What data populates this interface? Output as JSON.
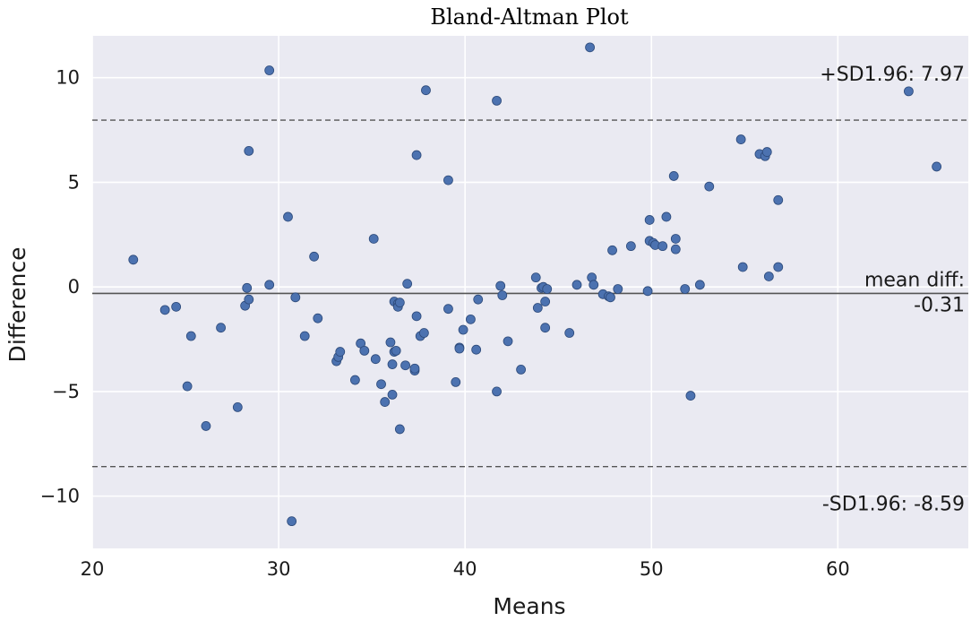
{
  "chart_data": {
    "type": "scatter",
    "title": "Bland-Altman Plot",
    "xlabel": "Means",
    "ylabel": "Difference",
    "xlim": [
      20,
      67
    ],
    "ylim": [
      -12.5,
      12
    ],
    "xticks": [
      20,
      30,
      40,
      50,
      60
    ],
    "yticks": [
      -10,
      -5,
      0,
      5,
      10
    ],
    "xtick_labels": [
      "20",
      "30",
      "40",
      "50",
      "60"
    ],
    "ytick_labels": [
      "−10",
      "−5",
      "0",
      "5",
      "10"
    ],
    "grid": true,
    "mean_diff": -0.31,
    "upper_loa": 7.97,
    "lower_loa": -8.59,
    "upper_label": "+SD1.96: 7.97",
    "mean_label_line1": "mean diff:",
    "mean_label_line2": "-0.31",
    "lower_label": "-SD1.96: -8.59",
    "colors": {
      "background": "#eaeaf2",
      "grid": "#ffffff",
      "point": "#4c72b0",
      "point_edge": "#2d4a7a",
      "mean_line": "#555555",
      "loa_line": "#555555"
    },
    "points": [
      [
        22.2,
        1.3
      ],
      [
        23.9,
        -1.1
      ],
      [
        24.5,
        -0.95
      ],
      [
        25.1,
        -4.75
      ],
      [
        25.3,
        -2.35
      ],
      [
        26.1,
        -6.65
      ],
      [
        26.9,
        -1.95
      ],
      [
        27.8,
        -5.75
      ],
      [
        28.2,
        -0.9
      ],
      [
        28.3,
        -0.05
      ],
      [
        28.4,
        6.5
      ],
      [
        28.4,
        -0.6
      ],
      [
        29.5,
        10.35
      ],
      [
        29.5,
        0.1
      ],
      [
        30.5,
        3.35
      ],
      [
        30.7,
        -11.2
      ],
      [
        30.9,
        -0.5
      ],
      [
        31.4,
        -2.35
      ],
      [
        31.9,
        1.45
      ],
      [
        32.1,
        -1.5
      ],
      [
        33.1,
        -3.55
      ],
      [
        33.2,
        -3.35
      ],
      [
        33.3,
        -3.1
      ],
      [
        34.1,
        -4.45
      ],
      [
        34.4,
        -2.7
      ],
      [
        34.6,
        -3.05
      ],
      [
        35.1,
        2.3
      ],
      [
        35.2,
        -3.45
      ],
      [
        35.5,
        -4.65
      ],
      [
        35.7,
        -5.5
      ],
      [
        36.0,
        -2.65
      ],
      [
        36.1,
        -5.15
      ],
      [
        36.1,
        -3.7
      ],
      [
        36.2,
        -3.1
      ],
      [
        36.2,
        -0.7
      ],
      [
        36.3,
        -3.05
      ],
      [
        36.4,
        -0.8
      ],
      [
        36.4,
        -0.95
      ],
      [
        36.5,
        -6.8
      ],
      [
        36.5,
        -0.75
      ],
      [
        36.8,
        -3.75
      ],
      [
        36.9,
        0.15
      ],
      [
        37.3,
        -4.0
      ],
      [
        37.3,
        -3.9
      ],
      [
        37.4,
        6.3
      ],
      [
        37.4,
        -1.4
      ],
      [
        37.6,
        -2.35
      ],
      [
        37.8,
        -2.2
      ],
      [
        37.9,
        9.4
      ],
      [
        39.1,
        5.1
      ],
      [
        39.1,
        -1.05
      ],
      [
        39.5,
        -4.55
      ],
      [
        39.7,
        -2.9
      ],
      [
        39.7,
        -2.95
      ],
      [
        39.9,
        -2.05
      ],
      [
        40.3,
        -1.55
      ],
      [
        40.6,
        -3.0
      ],
      [
        40.7,
        -0.6
      ],
      [
        41.7,
        8.9
      ],
      [
        41.7,
        -5.0
      ],
      [
        41.9,
        0.05
      ],
      [
        42.0,
        -0.4
      ],
      [
        42.3,
        -2.6
      ],
      [
        43.0,
        -3.95
      ],
      [
        43.8,
        0.45
      ],
      [
        43.9,
        -1.0
      ],
      [
        44.1,
        -0.05
      ],
      [
        44.2,
        0.0
      ],
      [
        44.3,
        -1.95
      ],
      [
        44.3,
        -0.7
      ],
      [
        44.4,
        -0.1
      ],
      [
        45.6,
        -2.2
      ],
      [
        46.0,
        0.1
      ],
      [
        46.7,
        11.45
      ],
      [
        46.8,
        0.45
      ],
      [
        46.9,
        0.1
      ],
      [
        47.4,
        -0.35
      ],
      [
        47.7,
        -0.45
      ],
      [
        47.8,
        -0.5
      ],
      [
        47.9,
        1.75
      ],
      [
        48.2,
        -0.1
      ],
      [
        48.9,
        1.95
      ],
      [
        49.8,
        -0.2
      ],
      [
        49.9,
        3.2
      ],
      [
        49.9,
        2.2
      ],
      [
        50.1,
        2.1
      ],
      [
        50.2,
        2.0
      ],
      [
        50.6,
        1.95
      ],
      [
        50.8,
        3.35
      ],
      [
        51.2,
        5.3
      ],
      [
        51.3,
        1.8
      ],
      [
        51.3,
        2.3
      ],
      [
        51.8,
        -0.1
      ],
      [
        52.1,
        -5.2
      ],
      [
        52.6,
        0.1
      ],
      [
        53.1,
        4.8
      ],
      [
        54.8,
        7.05
      ],
      [
        54.9,
        0.95
      ],
      [
        55.8,
        6.35
      ],
      [
        56.1,
        6.25
      ],
      [
        56.2,
        6.45
      ],
      [
        56.3,
        0.5
      ],
      [
        56.8,
        4.15
      ],
      [
        56.8,
        0.95
      ],
      [
        63.8,
        9.35
      ],
      [
        65.3,
        5.75
      ]
    ]
  }
}
